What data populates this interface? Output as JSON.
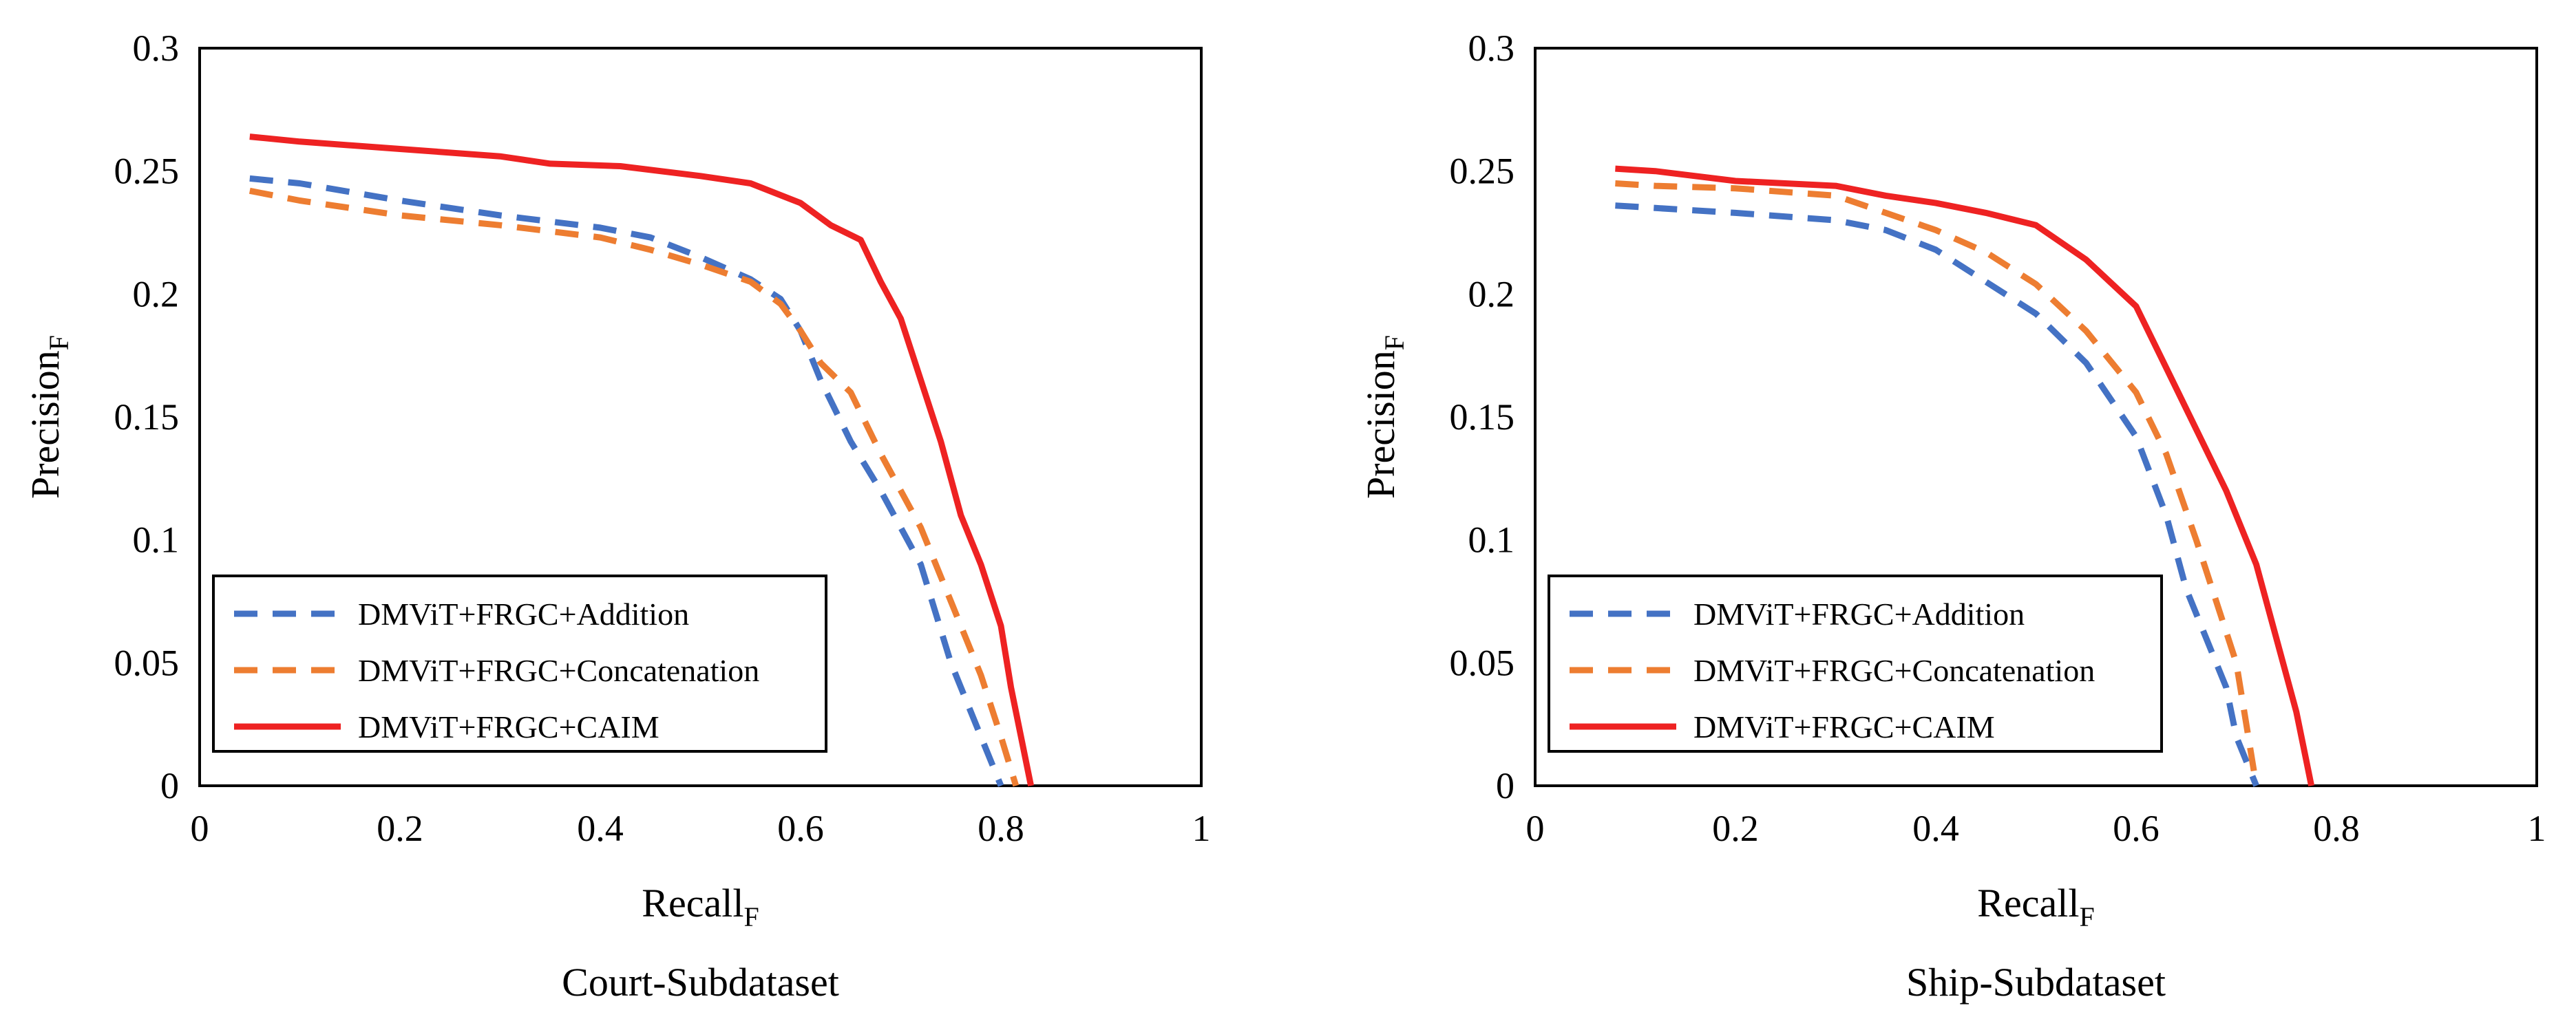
{
  "chart_data": [
    {
      "type": "line",
      "caption": "Court-Subdataset",
      "xlabel": "Recall",
      "xlabel_sub": "F",
      "ylabel": "Precision",
      "ylabel_sub": "F",
      "xlim": [
        0,
        1
      ],
      "ylim": [
        0,
        0.3
      ],
      "xticks": [
        "0",
        "0.2",
        "0.4",
        "0.6",
        "0.8",
        "1"
      ],
      "yticks": [
        "0",
        "0.05",
        "0.1",
        "0.15",
        "0.2",
        "0.25",
        "0.3"
      ],
      "grid": false,
      "legend_position": "bottom-left",
      "series": [
        {
          "name": "DMViT+FRGC+Addition",
          "color": "#4472C4",
          "dash": "dashed",
          "points": [
            [
              0.05,
              0.247
            ],
            [
              0.1,
              0.245
            ],
            [
              0.2,
              0.238
            ],
            [
              0.3,
              0.232
            ],
            [
              0.4,
              0.227
            ],
            [
              0.45,
              0.223
            ],
            [
              0.5,
              0.215
            ],
            [
              0.55,
              0.206
            ],
            [
              0.58,
              0.198
            ],
            [
              0.6,
              0.185
            ],
            [
              0.62,
              0.165
            ],
            [
              0.65,
              0.14
            ],
            [
              0.68,
              0.12
            ],
            [
              0.72,
              0.09
            ],
            [
              0.75,
              0.05
            ],
            [
              0.78,
              0.02
            ],
            [
              0.8,
              0
            ]
          ]
        },
        {
          "name": "DMViT+FRGC+Concatenation",
          "color": "#ED7D31",
          "dash": "dashed",
          "points": [
            [
              0.05,
              0.242
            ],
            [
              0.1,
              0.238
            ],
            [
              0.2,
              0.232
            ],
            [
              0.3,
              0.228
            ],
            [
              0.4,
              0.223
            ],
            [
              0.45,
              0.218
            ],
            [
              0.5,
              0.212
            ],
            [
              0.55,
              0.205
            ],
            [
              0.58,
              0.196
            ],
            [
              0.6,
              0.185
            ],
            [
              0.62,
              0.172
            ],
            [
              0.65,
              0.16
            ],
            [
              0.68,
              0.135
            ],
            [
              0.72,
              0.105
            ],
            [
              0.75,
              0.075
            ],
            [
              0.78,
              0.045
            ],
            [
              0.8,
              0.02
            ],
            [
              0.815,
              0
            ]
          ]
        },
        {
          "name": "DMViT+FRGC+CAIM",
          "color": "#EE2222",
          "dash": "solid",
          "points": [
            [
              0.05,
              0.264
            ],
            [
              0.1,
              0.262
            ],
            [
              0.2,
              0.259
            ],
            [
              0.3,
              0.256
            ],
            [
              0.35,
              0.253
            ],
            [
              0.42,
              0.252
            ],
            [
              0.5,
              0.248
            ],
            [
              0.55,
              0.245
            ],
            [
              0.6,
              0.237
            ],
            [
              0.63,
              0.228
            ],
            [
              0.66,
              0.222
            ],
            [
              0.68,
              0.205
            ],
            [
              0.7,
              0.19
            ],
            [
              0.72,
              0.165
            ],
            [
              0.74,
              0.14
            ],
            [
              0.76,
              0.11
            ],
            [
              0.78,
              0.09
            ],
            [
              0.8,
              0.065
            ],
            [
              0.81,
              0.04
            ],
            [
              0.82,
              0.02
            ],
            [
              0.83,
              0
            ]
          ]
        }
      ]
    },
    {
      "type": "line",
      "caption": "Ship-Subdataset",
      "xlabel": "Recall",
      "xlabel_sub": "F",
      "ylabel": "Precision",
      "ylabel_sub": "F",
      "xlim": [
        0,
        1
      ],
      "ylim": [
        0,
        0.3
      ],
      "xticks": [
        "0",
        "0.2",
        "0.4",
        "0.6",
        "0.8",
        "1"
      ],
      "yticks": [
        "0",
        "0.05",
        "0.1",
        "0.15",
        "0.2",
        "0.25",
        "0.3"
      ],
      "grid": false,
      "legend_position": "bottom-left",
      "series": [
        {
          "name": "DMViT+FRGC+Addition",
          "color": "#4472C4",
          "dash": "dashed",
          "points": [
            [
              0.08,
              0.236
            ],
            [
              0.12,
              0.235
            ],
            [
              0.2,
              0.233
            ],
            [
              0.3,
              0.23
            ],
            [
              0.35,
              0.226
            ],
            [
              0.4,
              0.218
            ],
            [
              0.45,
              0.205
            ],
            [
              0.5,
              0.192
            ],
            [
              0.55,
              0.172
            ],
            [
              0.6,
              0.142
            ],
            [
              0.63,
              0.11
            ],
            [
              0.65,
              0.08
            ],
            [
              0.67,
              0.06
            ],
            [
              0.69,
              0.04
            ],
            [
              0.7,
              0.02
            ],
            [
              0.71,
              0.01
            ],
            [
              0.72,
              0
            ]
          ]
        },
        {
          "name": "DMViT+FRGC+Concatenation",
          "color": "#ED7D31",
          "dash": "dashed",
          "points": [
            [
              0.08,
              0.245
            ],
            [
              0.12,
              0.244
            ],
            [
              0.2,
              0.243
            ],
            [
              0.3,
              0.24
            ],
            [
              0.35,
              0.233
            ],
            [
              0.4,
              0.226
            ],
            [
              0.45,
              0.217
            ],
            [
              0.5,
              0.204
            ],
            [
              0.55,
              0.185
            ],
            [
              0.6,
              0.16
            ],
            [
              0.63,
              0.135
            ],
            [
              0.66,
              0.1
            ],
            [
              0.68,
              0.075
            ],
            [
              0.7,
              0.05
            ],
            [
              0.71,
              0.025
            ],
            [
              0.72,
              0
            ]
          ]
        },
        {
          "name": "DMViT+FRGC+CAIM",
          "color": "#EE2222",
          "dash": "solid",
          "points": [
            [
              0.08,
              0.251
            ],
            [
              0.12,
              0.25
            ],
            [
              0.2,
              0.246
            ],
            [
              0.3,
              0.244
            ],
            [
              0.35,
              0.24
            ],
            [
              0.4,
              0.237
            ],
            [
              0.45,
              0.233
            ],
            [
              0.5,
              0.228
            ],
            [
              0.55,
              0.214
            ],
            [
              0.6,
              0.195
            ],
            [
              0.63,
              0.17
            ],
            [
              0.66,
              0.145
            ],
            [
              0.69,
              0.12
            ],
            [
              0.72,
              0.09
            ],
            [
              0.74,
              0.06
            ],
            [
              0.76,
              0.03
            ],
            [
              0.77,
              0.01
            ],
            [
              0.775,
              0
            ]
          ]
        }
      ]
    }
  ]
}
